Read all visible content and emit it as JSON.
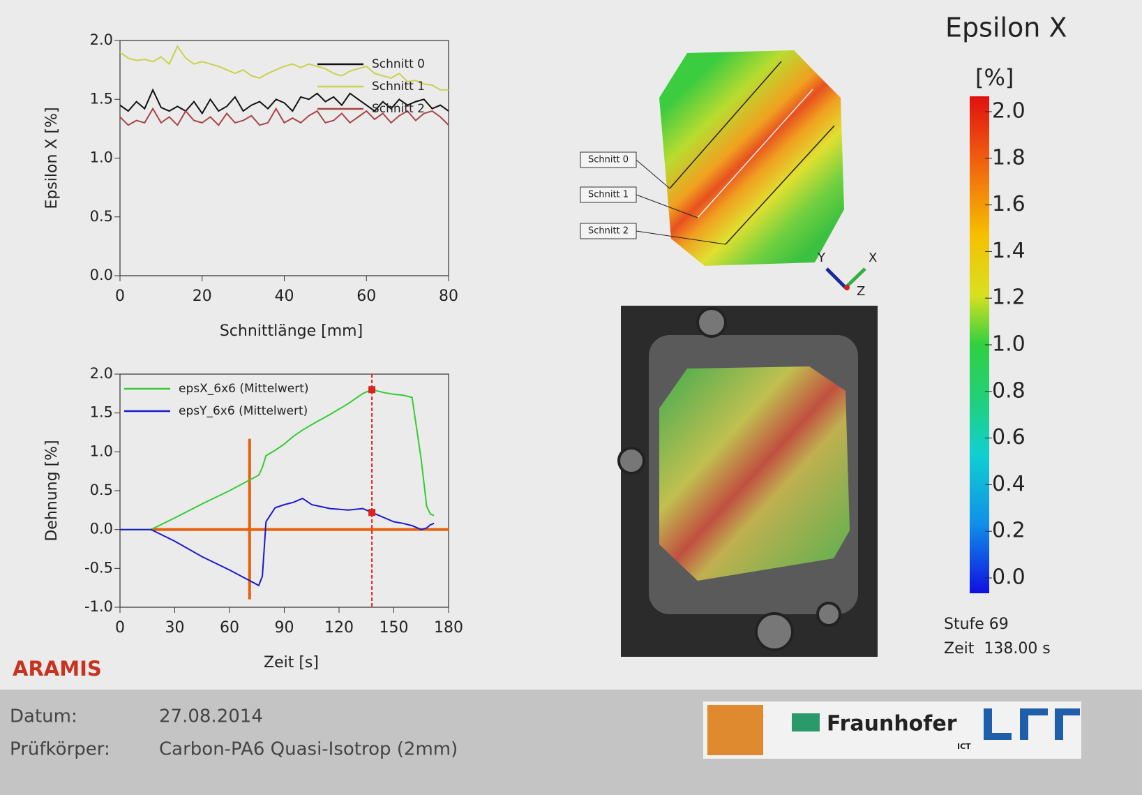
{
  "chart_data": [
    {
      "type": "line",
      "xlabel": "Schnittlänge [mm]",
      "ylabel": "Epsilon X [%]",
      "x": [
        0,
        2,
        4,
        6,
        8,
        10,
        12,
        14,
        16,
        18,
        20,
        22,
        24,
        26,
        28,
        30,
        32,
        34,
        36,
        38,
        40,
        42,
        44,
        46,
        48,
        50,
        52,
        54,
        56,
        58,
        60,
        62,
        64,
        66,
        68,
        70,
        72,
        74,
        76,
        78,
        80
      ],
      "series": [
        {
          "name": "Schnitt 0",
          "color": "#111111",
          "values": [
            1.45,
            1.4,
            1.48,
            1.42,
            1.58,
            1.43,
            1.4,
            1.44,
            1.4,
            1.48,
            1.38,
            1.5,
            1.4,
            1.44,
            1.52,
            1.4,
            1.45,
            1.48,
            1.42,
            1.5,
            1.47,
            1.4,
            1.52,
            1.5,
            1.55,
            1.48,
            1.52,
            1.45,
            1.55,
            1.5,
            1.45,
            1.4,
            1.48,
            1.42,
            1.5,
            1.45,
            1.48,
            1.5,
            1.42,
            1.45,
            1.4
          ]
        },
        {
          "name": "Schnitt 1",
          "color": "#c9d24a",
          "values": [
            1.9,
            1.85,
            1.83,
            1.84,
            1.82,
            1.86,
            1.8,
            1.95,
            1.85,
            1.8,
            1.82,
            1.8,
            1.78,
            1.75,
            1.72,
            1.75,
            1.7,
            1.68,
            1.72,
            1.75,
            1.78,
            1.8,
            1.77,
            1.8,
            1.78,
            1.76,
            1.72,
            1.7,
            1.74,
            1.76,
            1.78,
            1.72,
            1.7,
            1.68,
            1.72,
            1.65,
            1.66,
            1.63,
            1.62,
            1.58,
            1.58
          ]
        },
        {
          "name": "Schnitt 2",
          "color": "#a84444",
          "values": [
            1.35,
            1.28,
            1.32,
            1.3,
            1.42,
            1.3,
            1.35,
            1.28,
            1.4,
            1.32,
            1.3,
            1.35,
            1.28,
            1.38,
            1.3,
            1.32,
            1.36,
            1.28,
            1.3,
            1.42,
            1.3,
            1.34,
            1.3,
            1.36,
            1.4,
            1.3,
            1.32,
            1.38,
            1.3,
            1.35,
            1.4,
            1.33,
            1.38,
            1.3,
            1.36,
            1.4,
            1.32,
            1.38,
            1.4,
            1.35,
            1.28
          ]
        }
      ],
      "xlim": [
        0,
        80
      ],
      "xticks": [
        0,
        20,
        40,
        60,
        80
      ],
      "ylim": [
        0,
        2
      ],
      "yticks": [
        {
          "value": 0,
          "label": "0.0"
        },
        {
          "value": 0.5,
          "label": "0.5"
        },
        {
          "value": 1,
          "label": "1.0"
        },
        {
          "value": 1.5,
          "label": "1.5"
        },
        {
          "value": 2,
          "label": "2.0"
        }
      ],
      "legend": "upper right"
    },
    {
      "type": "line",
      "xlabel": "Zeit [s]",
      "ylabel": "Dehnung [%]",
      "x": [
        0,
        17,
        30,
        45,
        60,
        76,
        78,
        80,
        85,
        90,
        95,
        100,
        105,
        115,
        125,
        133,
        138,
        145,
        150,
        155,
        160,
        165,
        168,
        170,
        172
      ],
      "series": [
        {
          "name": "epsX_6x6 (Mittelwert)",
          "color": "#33cc33",
          "values": [
            0,
            0,
            0.15,
            0.33,
            0.5,
            0.7,
            0.8,
            0.95,
            1.02,
            1.1,
            1.2,
            1.28,
            1.35,
            1.48,
            1.62,
            1.75,
            1.8,
            1.76,
            1.74,
            1.73,
            1.7,
            0.9,
            0.3,
            0.2,
            0.18
          ]
        },
        {
          "name": "epsY_6x6 (Mittelwert)",
          "color": "#1a1acc",
          "values": [
            0,
            0,
            -0.15,
            -0.35,
            -0.52,
            -0.72,
            -0.6,
            0.1,
            0.28,
            0.32,
            0.35,
            0.4,
            0.32,
            0.27,
            0.25,
            0.27,
            0.22,
            0.15,
            0.1,
            0.08,
            0.05,
            0,
            0.02,
            0.06,
            0.08
          ]
        }
      ],
      "xlim": [
        0,
        180
      ],
      "xticks": [
        0,
        30,
        60,
        90,
        120,
        150,
        180
      ],
      "ylim": [
        -1,
        2
      ],
      "yticks": [
        {
          "value": -1,
          "label": "-1.0"
        },
        {
          "value": -0.5,
          "label": "-0.5"
        },
        {
          "value": 0,
          "label": "0.0"
        },
        {
          "value": 0.5,
          "label": "0.5"
        },
        {
          "value": 1,
          "label": "1.0"
        },
        {
          "value": 1.5,
          "label": "1.5"
        },
        {
          "value": 2,
          "label": "2.0"
        }
      ],
      "cursor_x": 138,
      "cursor_color": "#dd2222",
      "crosshair": {
        "x": 71,
        "y": 0,
        "color": "#e8600a"
      },
      "legend": "upper left"
    }
  ],
  "colorbar": {
    "title": "Epsilon X",
    "unit": "[%]",
    "range": [
      0,
      2
    ],
    "ticks": [
      {
        "value": 2,
        "label": "2.0"
      },
      {
        "value": 1.8,
        "label": "1.8"
      },
      {
        "value": 1.6,
        "label": "1.6"
      },
      {
        "value": 1.4,
        "label": "1.4"
      },
      {
        "value": 1.2,
        "label": "1.2"
      },
      {
        "value": 1,
        "label": "1.0"
      },
      {
        "value": 0.8,
        "label": "0.8"
      },
      {
        "value": 0.6,
        "label": "0.6"
      },
      {
        "value": 0.4,
        "label": "0.4"
      },
      {
        "value": 0.2,
        "label": "0.2"
      },
      {
        "value": 0,
        "label": "0.0"
      }
    ]
  },
  "status": {
    "stage": "Stufe 69",
    "time": "Zeit  138.00 s"
  },
  "strain_map": {
    "labels": [
      "Schnitt 0",
      "Schnitt 1",
      "Schnitt 2"
    ],
    "axes": {
      "x": "X",
      "y": "Y",
      "z": "Z"
    }
  },
  "brand": "ARAMIS",
  "footer": {
    "date_label": "Datum:",
    "date": "27.08.2014",
    "specimen_label": "Prüfkörper:",
    "specimen": "Carbon-PA6 Quasi-Isotrop (2mm)"
  },
  "logos": {
    "fraunhofer": "Fraunhofer",
    "institute": "ICT"
  }
}
